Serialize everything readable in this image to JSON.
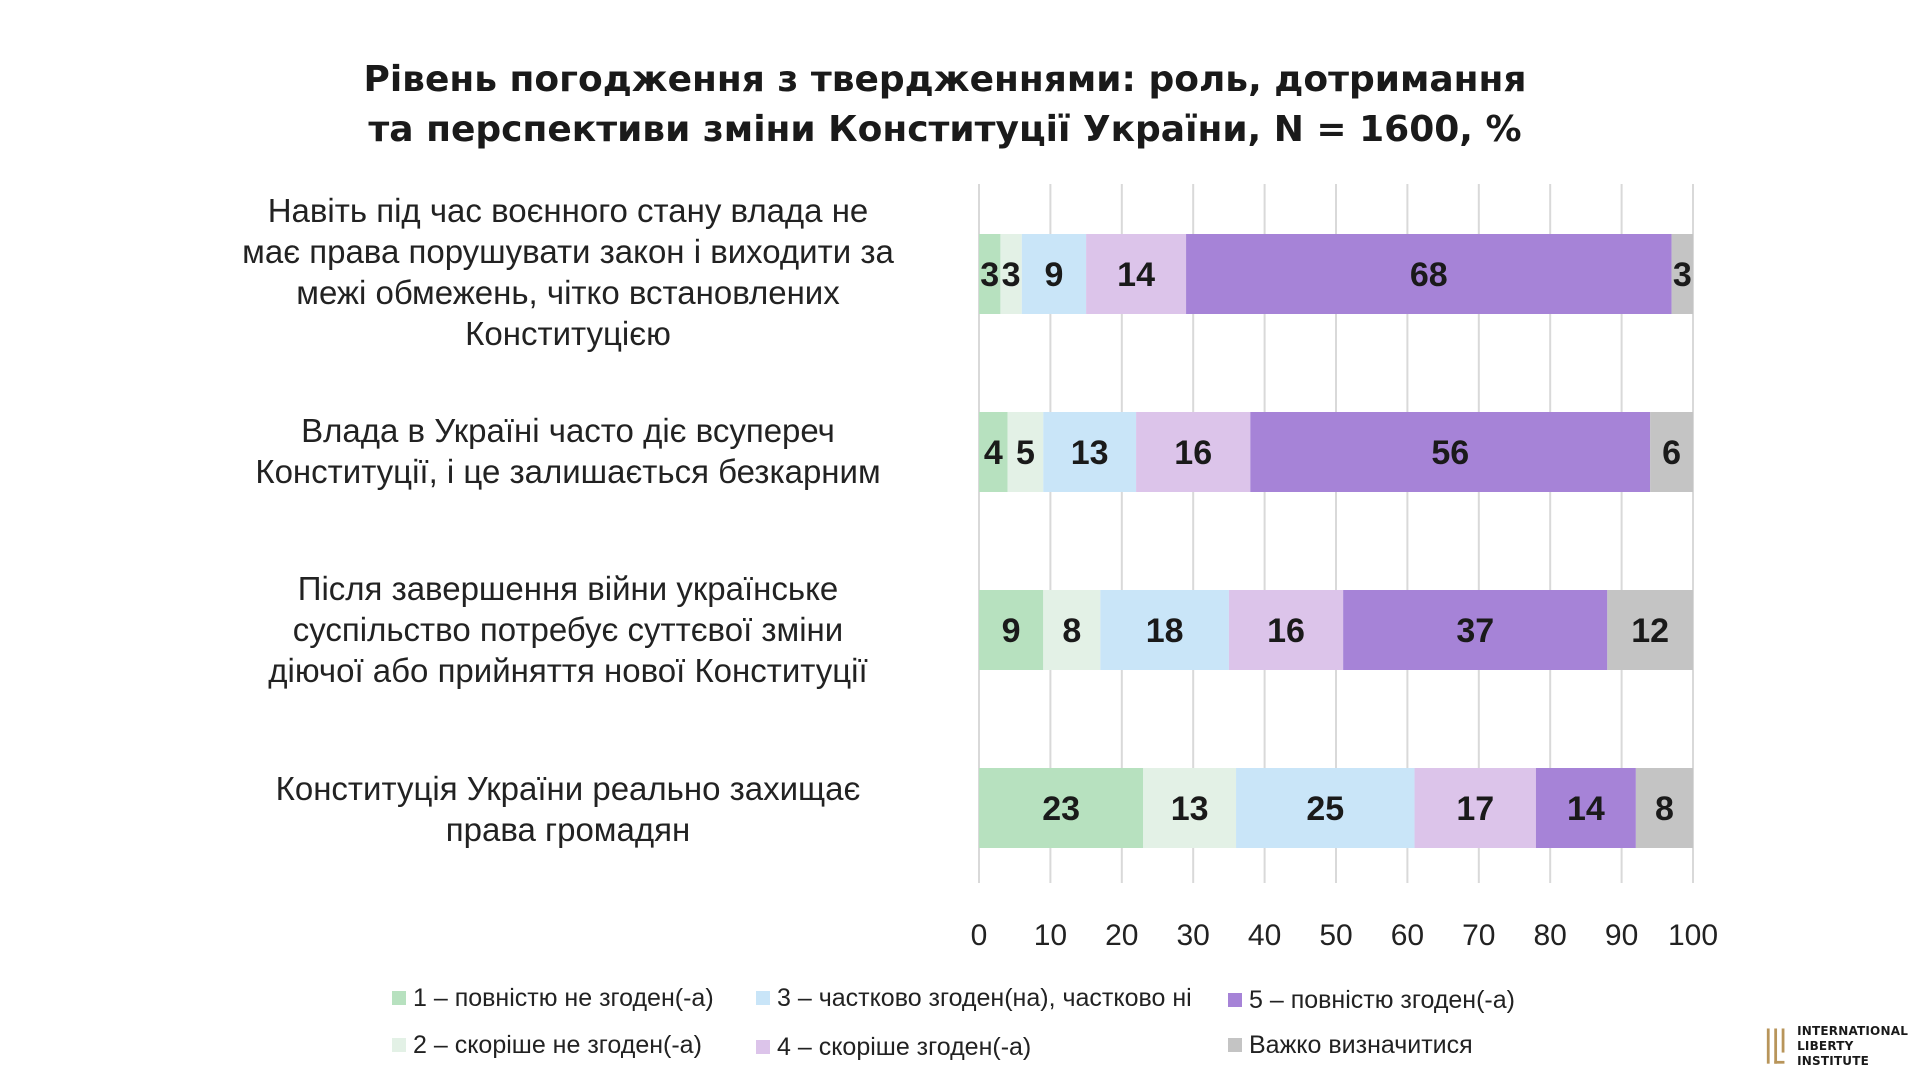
{
  "chart_data": {
    "type": "bar",
    "orientation": "horizontal",
    "stacked": true,
    "title": "Рівень погодження з твердженнями: роль, дотримання та перспективи зміни Конституції України, N = 1600, %",
    "title_lines": [
      "Рівень погодження з твердженнями: роль, дотримання",
      "та перспективи зміни Конституції України, N = 1600, %"
    ],
    "categories": [
      "Навіть під час воєнного стану влада не має права порушувати закон і виходити за межі обмежень, чітко встановлених Конституцією",
      "Влада в Україні часто діє всупереч Конституції, і це залишається безкарним",
      "Після завершення війни українське суспільство потребує суттєвої зміни діючої або прийняття нової Конституції",
      "Конституція України реально захищає права громадян"
    ],
    "category_lines": [
      [
        "Навіть під час воєнного стану влада не",
        "має права порушувати закон і виходити за",
        "межі обмежень, чітко встановлених",
        "Конституцією"
      ],
      [
        "Влада в Україні часто діє всупереч",
        "Конституції, і це залишається безкарним"
      ],
      [
        "Після завершення війни українське",
        "суспільство потребує суттєвої зміни",
        "діючої або прийняття нової Конституції"
      ],
      [
        "Конституція України реально захищає",
        "права громадян"
      ]
    ],
    "series": [
      {
        "name": "1 – повністю не згоден(-а)",
        "color": "#b7e1bf",
        "values": [
          3,
          4,
          9,
          23
        ]
      },
      {
        "name": "2 – скоріше не згоден(-а)",
        "color": "#e3f1e6",
        "values": [
          3,
          5,
          8,
          13
        ]
      },
      {
        "name": "3 – частково згоден(на), частково ні",
        "color": "#c9e5f8",
        "values": [
          9,
          13,
          18,
          25
        ]
      },
      {
        "name": "4 – скоріше згоден(-а)",
        "color": "#dcc4ea",
        "values": [
          14,
          16,
          16,
          17
        ]
      },
      {
        "name": "5 – повністю згоден(-а)",
        "color": "#a683d7",
        "values": [
          68,
          56,
          37,
          14
        ]
      },
      {
        "name": "Важко визначитися",
        "color": "#c4c4c4",
        "values": [
          3,
          6,
          12,
          8
        ]
      }
    ],
    "xlim": [
      0,
      100
    ],
    "xticks": [
      0,
      10,
      20,
      30,
      40,
      50,
      60,
      70,
      80,
      90,
      100
    ],
    "grid": true,
    "data_labels": true,
    "legend_position": "bottom"
  },
  "logo": {
    "line1": "INTERNATIONAL",
    "line2": "LIBERTY INSTITUTE"
  }
}
